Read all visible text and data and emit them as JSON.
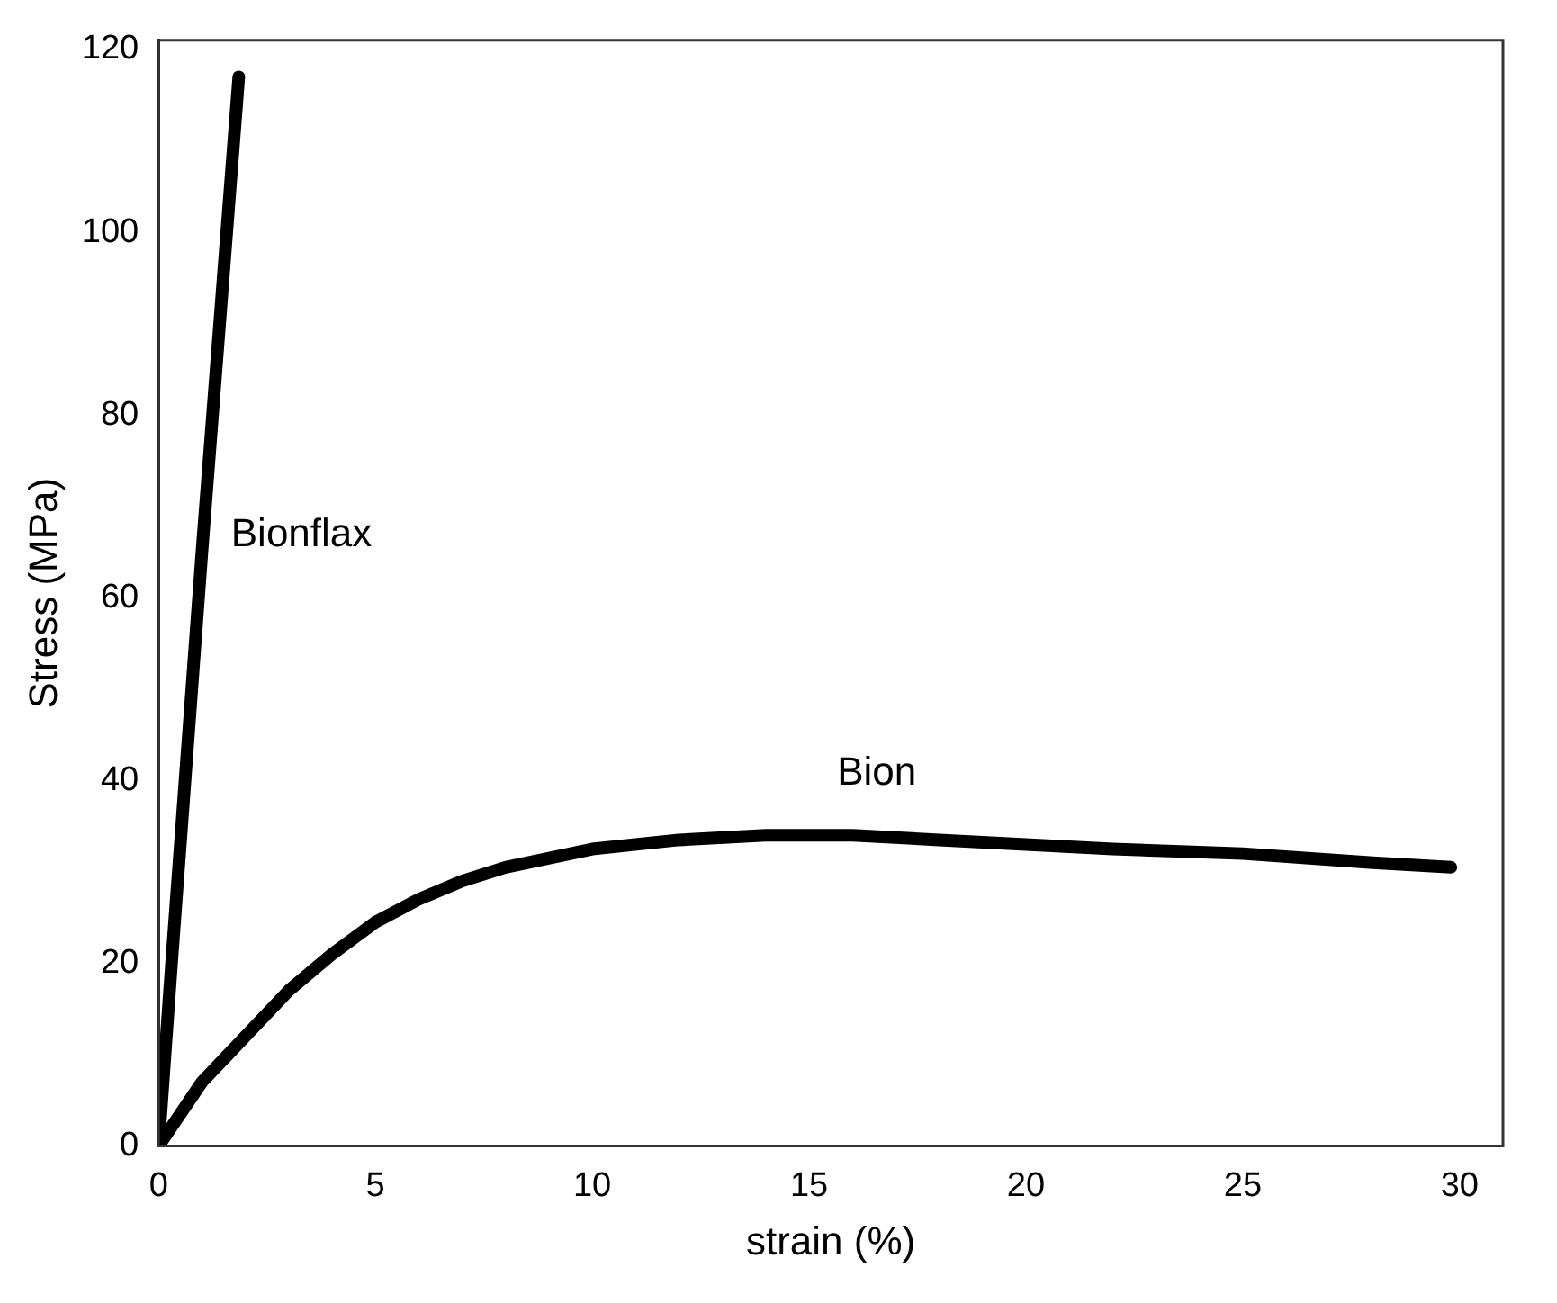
{
  "chart_data": {
    "type": "line",
    "xlabel": "strain (%)",
    "ylabel": "Stress (MPa)",
    "xlim": [
      0,
      31
    ],
    "ylim": [
      0,
      121
    ],
    "xticks": [
      0,
      5,
      10,
      15,
      20,
      25,
      30
    ],
    "yticks": [
      0,
      20,
      40,
      60,
      80,
      100,
      120
    ],
    "grid": false,
    "legend": false,
    "marker": "none",
    "line_style": "solid",
    "series": [
      {
        "name": "Bionflax",
        "color": "#000000",
        "x": [
          0,
          0.3,
          1.0,
          1.85
        ],
        "values": [
          0,
          20,
          65,
          117
        ]
      },
      {
        "name": "Bion",
        "color": "#000000",
        "x": [
          0,
          1,
          2,
          3,
          4,
          5,
          6,
          7,
          8,
          10,
          12,
          14,
          16,
          18,
          20,
          22,
          25,
          28,
          29.8
        ],
        "values": [
          0,
          7,
          12,
          17,
          21,
          24.5,
          27,
          29,
          30.5,
          32.5,
          33.5,
          34,
          34,
          33.5,
          33,
          32.5,
          32,
          31,
          30.5
        ]
      }
    ]
  }
}
